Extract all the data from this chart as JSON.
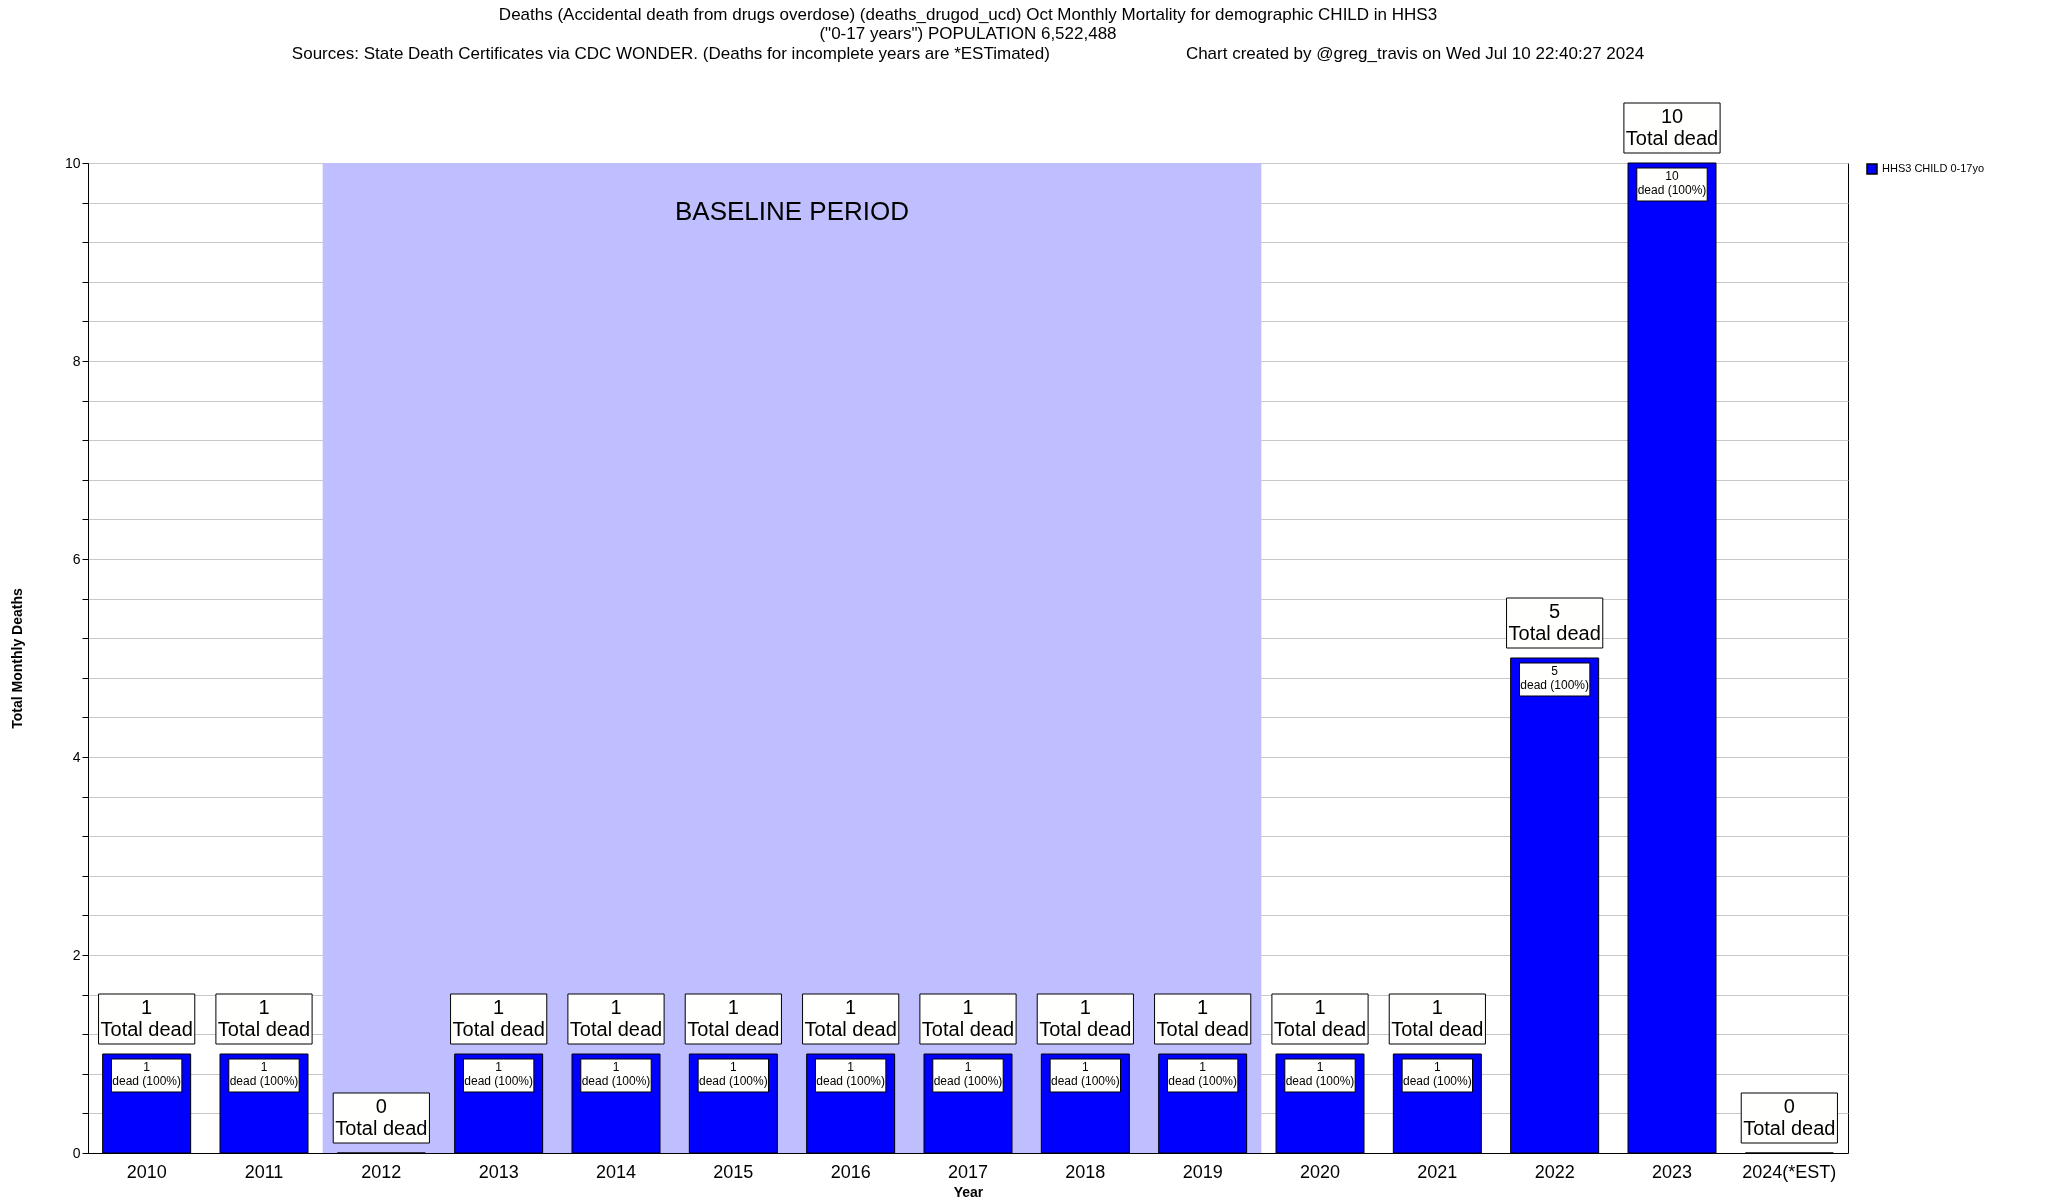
{
  "chart_data": {
    "type": "bar",
    "title": "Deaths (Accidental death from drugs overdose) (deaths_drugod_ucd) Oct Monthly Mortality for demographic CHILD in HHS3\n(\"0-17 years\") POPULATION 6,522,488",
    "subtitle": "Sources: State Death Certificates via CDC WONDER. (Deaths for incomplete years are *ESTimated)",
    "annotations": [
      "Chart created by @greg_travis on Wed Jul 10 22:40:27 2024"
    ],
    "xlabel": "Year",
    "ylabel": "Total Monthly Deaths",
    "categories": [
      "2010",
      "2011",
      "2012",
      "2013",
      "2014",
      "2015",
      "2016",
      "2017",
      "2018",
      "2019",
      "2020",
      "2021",
      "2022",
      "2023",
      "2024(*EST)"
    ],
    "series": [
      {
        "name": "HHS3 CHILD 0-17yo",
        "color": "#0000ff",
        "values": [
          1,
          1,
          0,
          1,
          1,
          1,
          1,
          1,
          1,
          1,
          1,
          1,
          5,
          10,
          0
        ],
        "value_labels": [
          "1\ndead (100%)",
          "1\ndead (100%)",
          null,
          "1\ndead (100%)",
          "1\ndead (100%)",
          "1\ndead (100%)",
          "1\ndead (100%)",
          "1\ndead (100%)",
          "1\ndead (100%)",
          "1\ndead (100%)",
          "1\ndead (100%)",
          "1\ndead (100%)",
          "5\ndead (100%)",
          "10\ndead (100%)",
          null
        ]
      }
    ],
    "totals": [
      "1\nTotal dead",
      "1\nTotal dead",
      "0\nTotal dead",
      "1\nTotal dead",
      "1\nTotal dead",
      "1\nTotal dead",
      "1\nTotal dead",
      "1\nTotal dead",
      "1\nTotal dead",
      "1\nTotal dead",
      "1\nTotal dead",
      "1\nTotal dead",
      "5\nTotal dead",
      "10\nTotal dead",
      "0\nTotal dead"
    ],
    "bands": [
      {
        "axis": "x",
        "from": "2012",
        "to": "2019",
        "label": "BASELINE PERIOD",
        "color": "#bfbfff"
      }
    ],
    "ylim": [
      0,
      10
    ],
    "yticks": [
      0,
      {
        "value": 0.4,
        "label": null
      },
      {
        "value": 0.8,
        "label": null
      },
      {
        "value": 1.2,
        "label": null
      },
      {
        "value": 1.6,
        "label": null
      },
      2,
      {
        "value": 2.4,
        "label": null
      },
      {
        "value": 2.8,
        "label": null
      },
      {
        "value": 3.2,
        "label": null
      },
      {
        "value": 3.6,
        "label": null
      },
      4,
      {
        "value": 4.4,
        "label": null
      },
      {
        "value": 4.8,
        "label": null
      },
      {
        "value": 5.2,
        "label": null
      },
      {
        "value": 5.6,
        "label": null
      },
      6,
      {
        "value": 6.4,
        "label": null
      },
      {
        "value": 6.8,
        "label": null
      },
      {
        "value": 7.2,
        "label": null
      },
      {
        "value": 7.6,
        "label": null
      },
      8,
      {
        "value": 8.4,
        "label": null
      },
      {
        "value": 8.8,
        "label": null
      },
      {
        "value": 9.2,
        "label": null
      },
      {
        "value": 9.6,
        "label": null
      },
      10
    ],
    "grid": "y",
    "legend": "top right"
  }
}
